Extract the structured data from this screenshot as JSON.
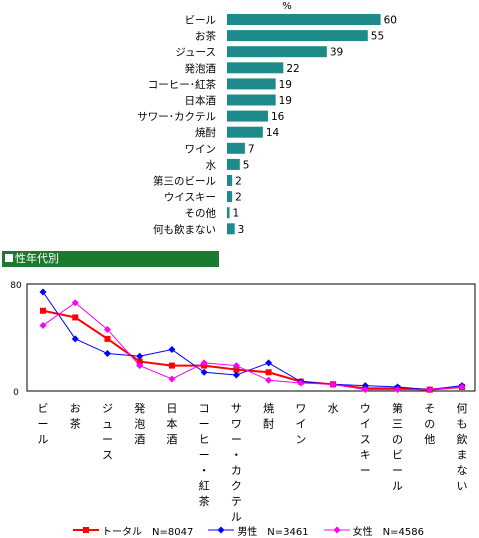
{
  "chart_data": [
    {
      "type": "bar",
      "unit_label": "%",
      "categories": [
        "ビール",
        "お茶",
        "ジュース",
        "発泡酒",
        "コーヒー･紅茶",
        "日本酒",
        "サワー･カクテル",
        "焼酎",
        "ワイン",
        "水",
        "第三のビール",
        "ウイスキー",
        "その他",
        "何も飲まない"
      ],
      "values": [
        60,
        55,
        39,
        22,
        19,
        19,
        16,
        14,
        7,
        5,
        2,
        2,
        1,
        3
      ],
      "color": "#1f8a8a",
      "xlim": [
        0,
        100
      ]
    },
    {
      "type": "line",
      "title": "性年代別",
      "categories": [
        "ビール",
        "お茶",
        "ジュース",
        "発泡酒",
        "日本酒",
        "コーヒー・紅茶",
        "サワー・カクテル",
        "焼酎",
        "ワイン",
        "水",
        "ウイスキー",
        "第三のビール",
        "その他",
        "何も飲まない"
      ],
      "y_ticks": [
        "80",
        "0"
      ],
      "ylim": [
        0,
        80
      ],
      "series": [
        {
          "name": "トータル　N=8047",
          "color": "#ff0000",
          "marker": "square",
          "values": [
            60,
            55,
            39,
            22,
            19,
            19,
            16,
            14,
            7,
            5,
            2,
            2,
            1,
            3
          ]
        },
        {
          "name": "男性　N=3461",
          "color": "#0000ff",
          "marker": "diamond",
          "values": [
            74,
            39,
            28,
            26,
            31,
            14,
            12,
            21,
            7,
            5,
            4,
            3,
            1,
            4
          ]
        },
        {
          "name": "女性　N=4586",
          "color": "#ff00ff",
          "marker": "diamond",
          "values": [
            49,
            66,
            46,
            19,
            9,
            21,
            19,
            8,
            6,
            5,
            1,
            1,
            1,
            3
          ]
        }
      ]
    }
  ]
}
